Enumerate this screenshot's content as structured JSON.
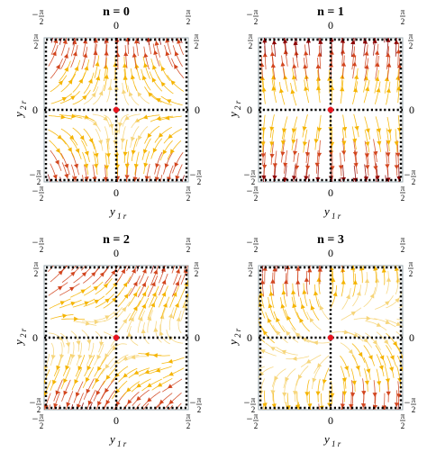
{
  "figure": {
    "colors": {
      "dark": "#8b0000",
      "mid": "#d2451e",
      "light": "#f5b400",
      "pale": "#f6d57a",
      "frame": "#9aa7ad",
      "zero_point": "#e8141e"
    },
    "panels": [
      {
        "title": "n = 0",
        "x_top_label": "0"
      },
      {
        "title": "n = 1",
        "x_top_label": "0"
      },
      {
        "title": "n = 2",
        "x_top_label": "0"
      },
      {
        "title": "n = 3",
        "x_top_label": "0"
      }
    ],
    "ticks": {
      "minus": "−",
      "zero": "0",
      "pi": "π",
      "two": "2"
    },
    "x_axis_label": {
      "main": "y",
      "sub": "1 r"
    },
    "y_axis_label": {
      "main": "y",
      "sub": "2 r"
    }
  }
}
